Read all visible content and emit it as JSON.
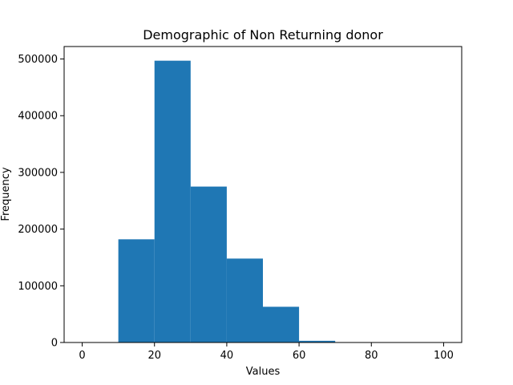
{
  "chart_data": {
    "type": "bar",
    "title": "Demographic of Non Returning donor",
    "xlabel": "Values",
    "ylabel": "Frequency",
    "bar_color": "#1f77b4",
    "xlim": [
      -5,
      105
    ],
    "ylim": [
      0,
      522000
    ],
    "x_ticks": [
      0,
      20,
      40,
      60,
      80,
      100
    ],
    "y_ticks": [
      0,
      100000,
      200000,
      300000,
      400000,
      500000
    ],
    "bins": [
      {
        "start": 0,
        "end": 10,
        "value": 0
      },
      {
        "start": 10,
        "end": 20,
        "value": 182000
      },
      {
        "start": 20,
        "end": 30,
        "value": 497000
      },
      {
        "start": 30,
        "end": 40,
        "value": 275000
      },
      {
        "start": 40,
        "end": 50,
        "value": 148000
      },
      {
        "start": 50,
        "end": 60,
        "value": 63000
      },
      {
        "start": 60,
        "end": 70,
        "value": 3000
      },
      {
        "start": 70,
        "end": 80,
        "value": 0
      },
      {
        "start": 80,
        "end": 90,
        "value": 0
      },
      {
        "start": 90,
        "end": 100,
        "value": 0
      }
    ]
  }
}
